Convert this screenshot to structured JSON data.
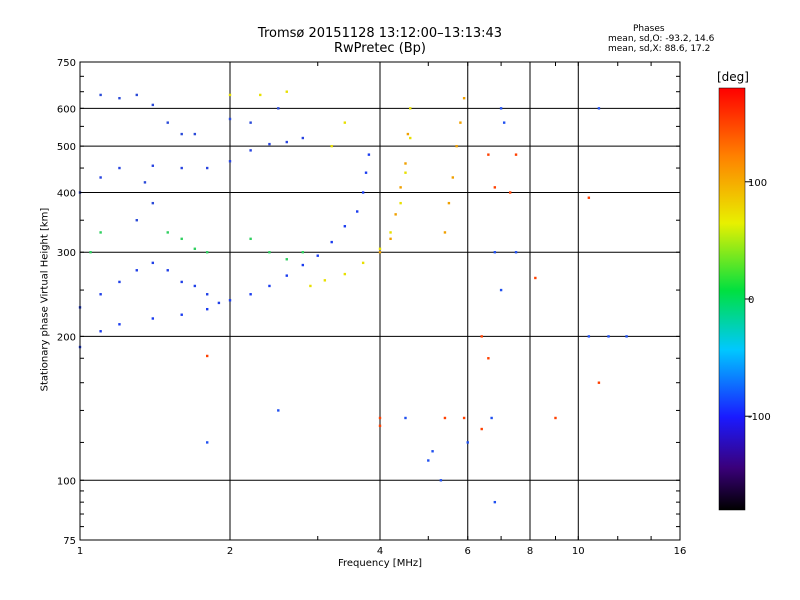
{
  "chart_data": {
    "type": "scatter",
    "title": "Tromsø 20151128 13:12:00–13:13:43",
    "subtitle": "RwPretec (Bp)",
    "xlabel": "Frequency [MHz]",
    "ylabel": "Stationary phase Virtual Height [km]",
    "x_scale": "log2",
    "y_scale": "log",
    "xlim": [
      1,
      16
    ],
    "ylim": [
      75,
      750
    ],
    "x_ticks": [
      "1",
      "2",
      "4",
      "6",
      "8",
      "10",
      "16"
    ],
    "x_tick_values": [
      1,
      2,
      4,
      6,
      8,
      10,
      16
    ],
    "y_ticks": [
      "75",
      "100",
      "200",
      "300",
      "400",
      "500",
      "600",
      "750"
    ],
    "y_tick_values": [
      75,
      100,
      200,
      300,
      400,
      500,
      600,
      750
    ],
    "grid": true,
    "stats": {
      "header": "Phases",
      "o_line": "mean, sd,O: -93.2, 14.6",
      "x_line": "mean, sd,X: 88.6, 17.2"
    },
    "colorbar": {
      "label": "[deg]",
      "ticks": [
        "100",
        "0",
        "-100"
      ],
      "tick_values": [
        100,
        0,
        -100
      ],
      "range": [
        -180,
        180
      ]
    },
    "series": [
      {
        "trace": "blue O-mode lower trace",
        "color": "#1a3cf0",
        "phase_deg": -95,
        "points": [
          [
            1.0,
            190
          ],
          [
            1.1,
            205
          ],
          [
            1.2,
            212
          ],
          [
            1.4,
            218
          ],
          [
            1.6,
            222
          ],
          [
            1.8,
            228
          ],
          [
            2.0,
            238
          ],
          [
            2.2,
            245
          ],
          [
            2.4,
            255
          ],
          [
            2.6,
            268
          ],
          [
            2.8,
            282
          ],
          [
            3.0,
            295
          ],
          [
            3.2,
            315
          ],
          [
            3.4,
            340
          ],
          [
            3.6,
            365
          ],
          [
            3.7,
            400
          ],
          [
            3.75,
            440
          ],
          [
            3.8,
            480
          ]
        ]
      },
      {
        "trace": "blue spread F upper",
        "color": "#2844e0",
        "phase_deg": -90,
        "points": [
          [
            1.0,
            400
          ],
          [
            1.1,
            430
          ],
          [
            1.2,
            450
          ],
          [
            1.4,
            455
          ],
          [
            1.6,
            450
          ],
          [
            1.8,
            450
          ],
          [
            2.0,
            465
          ],
          [
            2.2,
            490
          ],
          [
            2.4,
            505
          ],
          [
            2.6,
            510
          ],
          [
            2.8,
            520
          ]
        ]
      },
      {
        "trace": "blue spread band",
        "color": "#2040e8",
        "phase_deg": -100,
        "points": [
          [
            1.0,
            230
          ],
          [
            1.1,
            245
          ],
          [
            1.2,
            260
          ],
          [
            1.3,
            275
          ],
          [
            1.4,
            285
          ],
          [
            1.5,
            275
          ],
          [
            1.6,
            260
          ],
          [
            1.7,
            255
          ],
          [
            1.8,
            245
          ],
          [
            1.9,
            235
          ]
        ]
      },
      {
        "trace": "blue scattered high",
        "color": "#2a4ad8",
        "phase_deg": -85,
        "points": [
          [
            1.1,
            640
          ],
          [
            1.2,
            630
          ],
          [
            1.3,
            640
          ],
          [
            1.4,
            610
          ],
          [
            1.5,
            560
          ],
          [
            1.6,
            530
          ],
          [
            1.7,
            530
          ],
          [
            2.0,
            570
          ],
          [
            2.2,
            560
          ],
          [
            2.5,
            600
          ],
          [
            1.3,
            350
          ],
          [
            1.4,
            380
          ],
          [
            1.35,
            420
          ]
        ]
      },
      {
        "trace": "green-cyan scattered",
        "color": "#30d060",
        "phase_deg": 30,
        "points": [
          [
            1.5,
            330
          ],
          [
            1.6,
            320
          ],
          [
            1.7,
            305
          ],
          [
            1.8,
            300
          ],
          [
            2.2,
            320
          ],
          [
            2.4,
            300
          ],
          [
            2.6,
            290
          ],
          [
            2.8,
            300
          ],
          [
            1.05,
            300
          ],
          [
            1.1,
            330
          ]
        ]
      },
      {
        "trace": "X-mode yellow trace",
        "color": "#e8e000",
        "phase_deg": 90,
        "points": [
          [
            2.9,
            255
          ],
          [
            3.1,
            262
          ],
          [
            3.4,
            270
          ],
          [
            3.7,
            285
          ],
          [
            4.0,
            305
          ],
          [
            4.2,
            330
          ],
          [
            4.4,
            380
          ],
          [
            4.5,
            440
          ],
          [
            4.6,
            520
          ],
          [
            4.6,
            600
          ],
          [
            2.0,
            640
          ],
          [
            2.3,
            640
          ],
          [
            2.6,
            650
          ],
          [
            3.2,
            500
          ],
          [
            3.4,
            560
          ]
        ]
      },
      {
        "trace": "X-mode orange trace",
        "color": "#f0a000",
        "phase_deg": 130,
        "points": [
          [
            4.0,
            300
          ],
          [
            4.2,
            320
          ],
          [
            4.3,
            360
          ],
          [
            4.4,
            410
          ],
          [
            4.5,
            460
          ],
          [
            4.55,
            530
          ],
          [
            5.4,
            330
          ],
          [
            5.5,
            380
          ],
          [
            5.6,
            430
          ],
          [
            5.7,
            500
          ],
          [
            5.8,
            560
          ],
          [
            5.9,
            630
          ]
        ]
      },
      {
        "trace": "sparse scattered points",
        "color": "#ff4000",
        "phase_deg": 170,
        "points": [
          [
            1.8,
            182
          ],
          [
            4.0,
            135
          ],
          [
            4.0,
            130
          ],
          [
            5.4,
            135
          ],
          [
            5.9,
            135
          ],
          [
            6.4,
            128
          ],
          [
            6.6,
            480
          ],
          [
            6.8,
            410
          ],
          [
            7.3,
            400
          ],
          [
            7.5,
            480
          ],
          [
            8.2,
            265
          ],
          [
            9.0,
            135
          ],
          [
            10.5,
            390
          ],
          [
            11.0,
            160
          ],
          [
            6.4,
            200
          ],
          [
            6.6,
            180
          ]
        ]
      },
      {
        "trace": "sparse blue points",
        "color": "#2050f0",
        "phase_deg": -100,
        "points": [
          [
            1.8,
            120
          ],
          [
            4.5,
            135
          ],
          [
            5.0,
            110
          ],
          [
            5.1,
            115
          ],
          [
            5.3,
            100
          ],
          [
            6.0,
            120
          ],
          [
            6.7,
            135
          ],
          [
            7.0,
            600
          ],
          [
            7.1,
            560
          ],
          [
            7.0,
            250
          ],
          [
            6.8,
            300
          ],
          [
            7.5,
            300
          ],
          [
            10.5,
            200
          ],
          [
            11.0,
            600
          ],
          [
            11.5,
            200
          ],
          [
            12.5,
            200
          ],
          [
            6.8,
            90
          ],
          [
            2.5,
            140
          ]
        ]
      }
    ]
  }
}
